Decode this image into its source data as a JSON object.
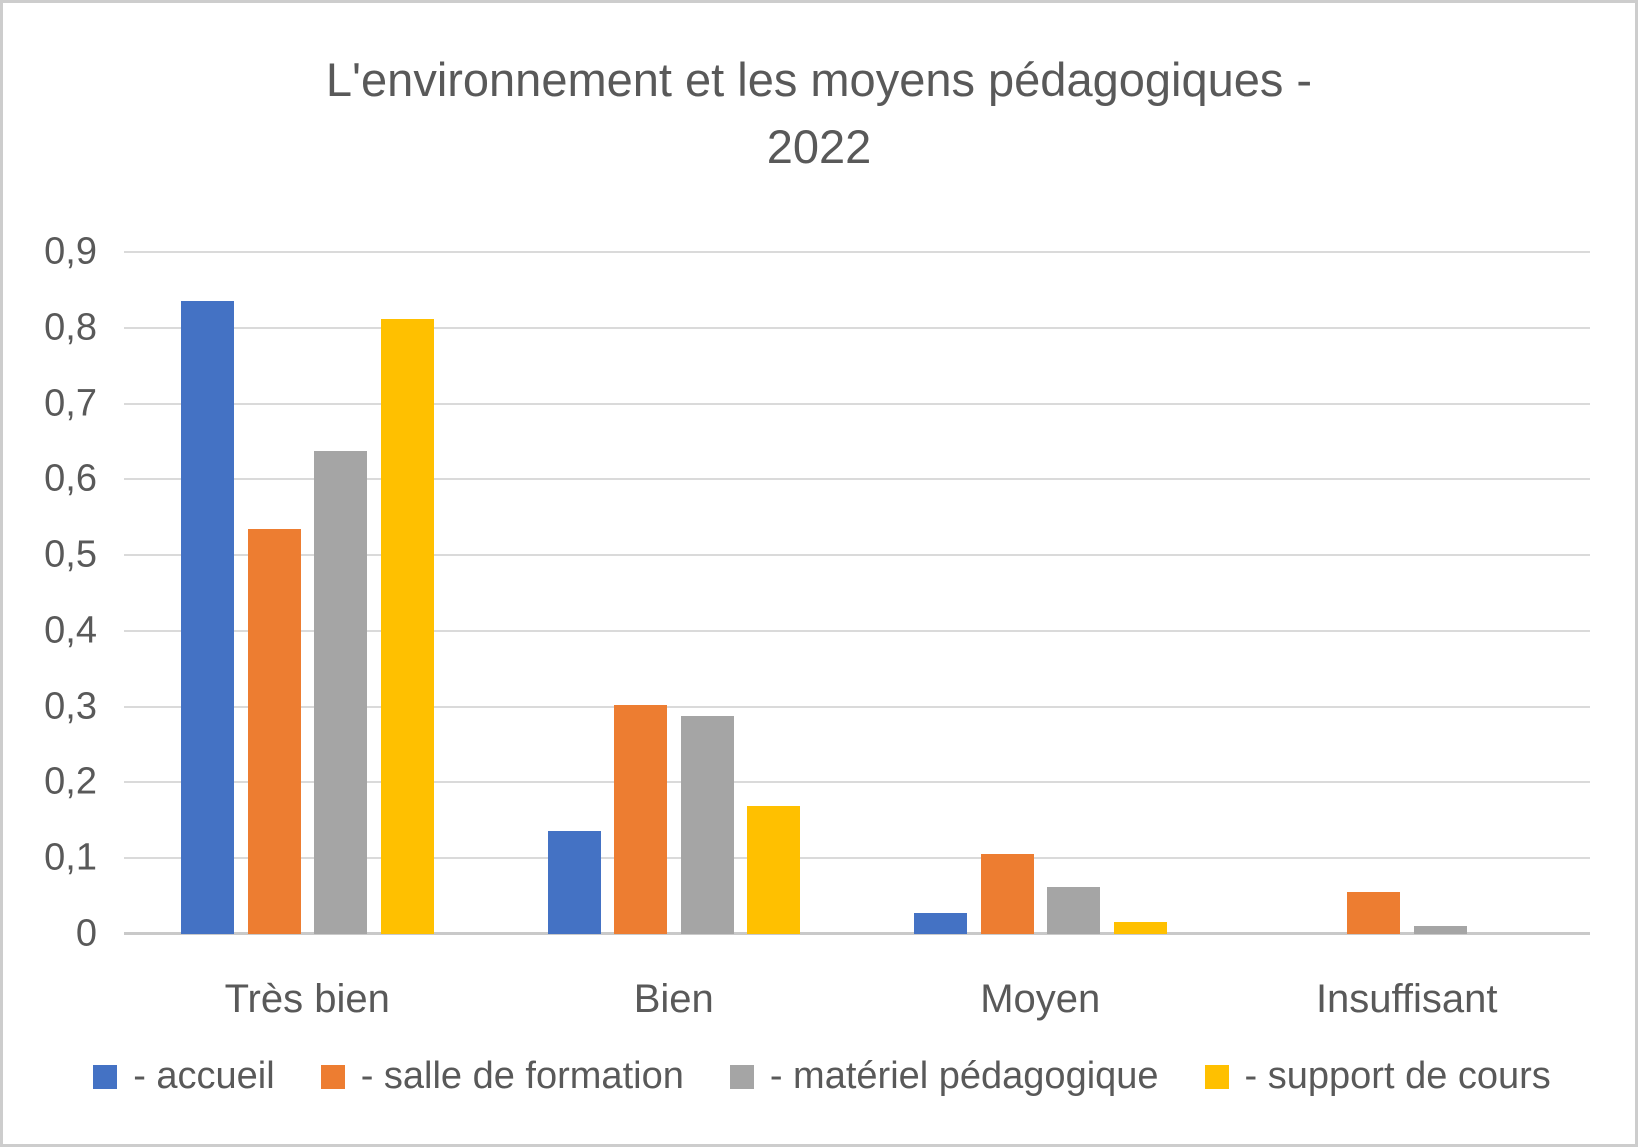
{
  "frame": {
    "background": "#ffffff",
    "border_color": "#cdcdcd",
    "text_color": "#595959",
    "gridline_color": "#dadada",
    "axis_line_color": "#c9c9c9"
  },
  "chart_data": {
    "type": "bar",
    "title": "L'environnement et les moyens pédagogiques - 2022",
    "title_lines": [
      "L'environnement et les moyens pédagogiques -",
      "2022"
    ],
    "xlabel": "",
    "ylabel": "",
    "categories": [
      "Très bien",
      "Bien",
      "Moyen",
      "Insuffisant"
    ],
    "series": [
      {
        "name": "- accueil",
        "color": "#4472C4",
        "values": [
          0.836,
          0.136,
          0.028,
          0
        ]
      },
      {
        "name": "- salle de formation",
        "color": "#ED7D31",
        "values": [
          0.534,
          0.302,
          0.106,
          0.055
        ]
      },
      {
        "name": "- matériel pédagogique",
        "color": "#A5A5A5",
        "values": [
          0.637,
          0.288,
          0.062,
          0.01
        ]
      },
      {
        "name": "- support de cours",
        "color": "#FFC000",
        "values": [
          0.812,
          0.169,
          0.016,
          0
        ]
      }
    ],
    "y_axis": {
      "min": 0,
      "max": 0.9,
      "step": 0.1,
      "decimal_separator": ",",
      "tick_labels": [
        "0,9",
        "0,8",
        "0,7",
        "0,6",
        "0,5",
        "0,4",
        "0,3",
        "0,2",
        "0,1",
        "0"
      ]
    },
    "ylim": [
      0,
      0.9
    ],
    "grid": true,
    "legend_position": "bottom"
  }
}
